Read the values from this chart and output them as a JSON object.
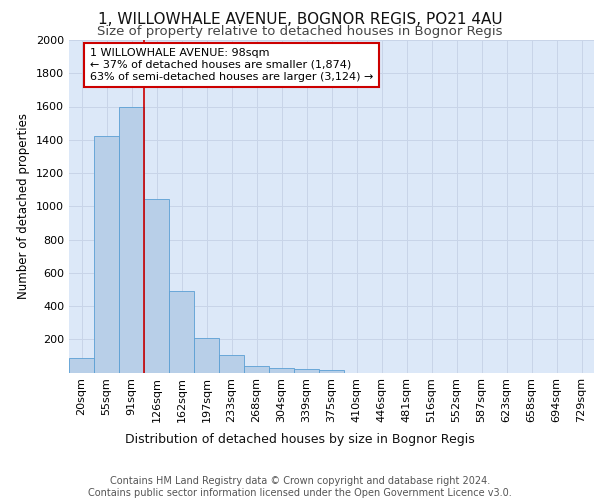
{
  "title1": "1, WILLOWHALE AVENUE, BOGNOR REGIS, PO21 4AU",
  "title2": "Size of property relative to detached houses in Bognor Regis",
  "xlabel": "Distribution of detached houses by size in Bognor Regis",
  "ylabel": "Number of detached properties",
  "categories": [
    "20sqm",
    "55sqm",
    "91sqm",
    "126sqm",
    "162sqm",
    "197sqm",
    "233sqm",
    "268sqm",
    "304sqm",
    "339sqm",
    "375sqm",
    "410sqm",
    "446sqm",
    "481sqm",
    "516sqm",
    "552sqm",
    "587sqm",
    "623sqm",
    "658sqm",
    "694sqm",
    "729sqm"
  ],
  "values": [
    88,
    1420,
    1600,
    1045,
    490,
    205,
    108,
    42,
    28,
    20,
    15,
    0,
    0,
    0,
    0,
    0,
    0,
    0,
    0,
    0,
    0
  ],
  "bar_color": "#b8cfe8",
  "bar_edge_color": "#5a9fd4",
  "vline_color": "#cc0000",
  "vline_pos": 2.5,
  "annotation_text": "1 WILLOWHALE AVENUE: 98sqm\n← 37% of detached houses are smaller (1,874)\n63% of semi-detached houses are larger (3,124) →",
  "annotation_box_color": "#ffffff",
  "annotation_box_edge": "#cc0000",
  "ylim": [
    0,
    2000
  ],
  "yticks": [
    0,
    200,
    400,
    600,
    800,
    1000,
    1200,
    1400,
    1600,
    1800,
    2000
  ],
  "grid_color": "#c8d4e8",
  "background_color": "#dce8f8",
  "footer_text": "Contains HM Land Registry data © Crown copyright and database right 2024.\nContains public sector information licensed under the Open Government Licence v3.0.",
  "title1_fontsize": 11,
  "title2_fontsize": 9.5,
  "xlabel_fontsize": 9,
  "ylabel_fontsize": 8.5,
  "footer_fontsize": 7,
  "tick_fontsize": 8
}
